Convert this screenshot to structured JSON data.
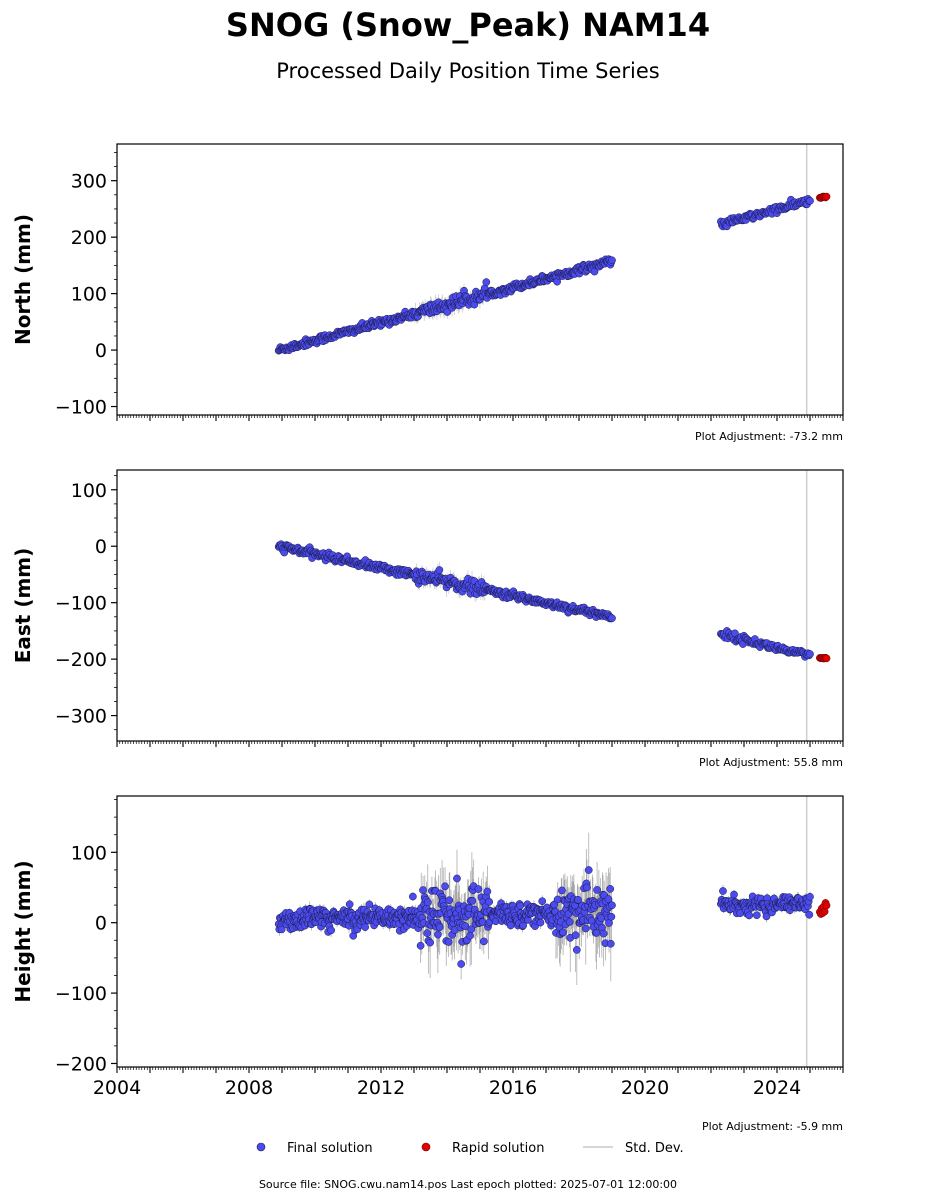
{
  "title": "SNOG (Snow_Peak) NAM14",
  "subtitle": "Processed Daily Position Time Series",
  "source_text": "Source file: SNOG.cwu.nam14.pos  Last epoch plotted: 2025-07-01 12:00:00",
  "legend": {
    "final": "Final solution",
    "rapid": "Rapid solution",
    "std": "Std. Dev."
  },
  "colors": {
    "final": "#4B4BF0",
    "rapid": "#E00000",
    "edge": "#1a1a40",
    "std": "#b0b0b0"
  },
  "chart_data": [
    {
      "type": "scatter",
      "ylabel": "North (mm)",
      "adjustment": "Plot Adjustment: -73.2 mm",
      "xlim": [
        2004,
        2026
      ],
      "ylim": [
        -115,
        365
      ],
      "yticks": [
        -100,
        0,
        100,
        200,
        300
      ],
      "xticks": [
        2004,
        2008,
        2012,
        2016,
        2020,
        2024
      ],
      "show_xticklabels": false,
      "segments": [
        {
          "x": [
            2008.9,
            2019.0
          ],
          "y": [
            0,
            158
          ]
        },
        {
          "x": [
            2022.3,
            2025.0
          ],
          "y": [
            222,
            265
          ]
        }
      ],
      "rapid": {
        "x": [
          2025.3,
          2025.5
        ],
        "y": [
          270,
          271
        ]
      },
      "big_std_x": 2024.9
    },
    {
      "type": "scatter",
      "ylabel": "East (mm)",
      "adjustment": "Plot Adjustment: 55.8 mm",
      "xlim": [
        2004,
        2026
      ],
      "ylim": [
        -345,
        135
      ],
      "yticks": [
        -300,
        -200,
        -100,
        0,
        100
      ],
      "xticks": [
        2004,
        2008,
        2012,
        2016,
        2020,
        2024
      ],
      "show_xticklabels": false,
      "segments": [
        {
          "x": [
            2008.9,
            2019.0
          ],
          "y": [
            0,
            -125
          ]
        },
        {
          "x": [
            2022.3,
            2025.0
          ],
          "y": [
            -155,
            -195
          ]
        }
      ],
      "rapid": {
        "x": [
          2025.3,
          2025.5
        ],
        "y": [
          -198,
          -199
        ]
      },
      "big_std_x": 2024.9
    },
    {
      "type": "scatter",
      "ylabel": "Height (mm)",
      "adjustment": "Plot Adjustment: -5.9 mm",
      "xlim": [
        2004,
        2026
      ],
      "ylim": [
        -205,
        180
      ],
      "yticks": [
        -200,
        -100,
        0,
        100
      ],
      "xticks": [
        2004,
        2008,
        2012,
        2016,
        2020,
        2024
      ],
      "xticklabels": [
        "2004",
        "2008",
        "2012",
        "2016",
        "2020",
        "2024"
      ],
      "show_xticklabels": true,
      "segments": [
        {
          "x": [
            2008.9,
            2019.0
          ],
          "y": [
            5,
            15
          ]
        },
        {
          "x": [
            2022.3,
            2025.0
          ],
          "y": [
            25,
            25
          ]
        }
      ],
      "rapid": {
        "x": [
          2025.3,
          2025.5
        ],
        "y": [
          18,
          22
        ]
      },
      "big_std_x": 2024.9
    }
  ]
}
